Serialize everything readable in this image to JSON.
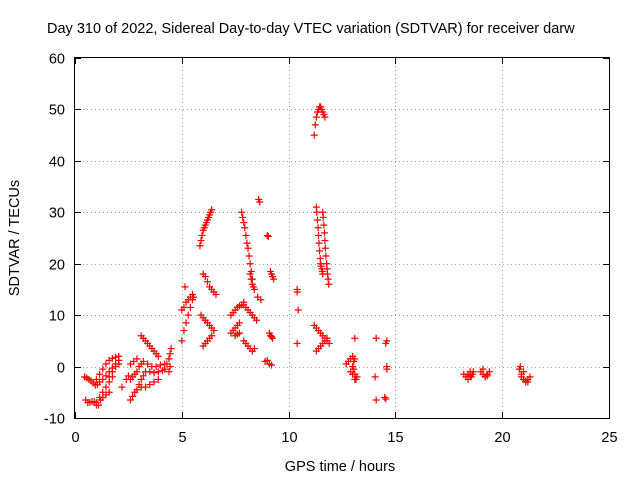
{
  "chart_data": {
    "type": "scatter",
    "title": "Day 310 of 2022, Sidereal Day-to-day VTEC variation (SDTVAR) for receiver darw",
    "xlabel": "GPS time / hours",
    "ylabel": "SDTVAR / TECUs",
    "xlim": [
      0,
      25
    ],
    "ylim": [
      -10,
      60
    ],
    "xticks": [
      0,
      5,
      10,
      15,
      20,
      25
    ],
    "yticks": [
      -10,
      0,
      10,
      20,
      30,
      40,
      50,
      60
    ],
    "grid": true,
    "marker": "+",
    "color": "#ff0000",
    "series": [
      {
        "name": "SDTVAR",
        "x": [
          0.45,
          0.55,
          0.65,
          0.75,
          0.85,
          0.95,
          1.05,
          1.15,
          1.3,
          1.45,
          1.6,
          1.75,
          1.9,
          2.05,
          1.0,
          1.15,
          1.3,
          1.45,
          1.6,
          1.75,
          1.9,
          2.05,
          1.0,
          1.15,
          1.3,
          1.45,
          1.6,
          1.75,
          0.5,
          0.6,
          0.7,
          0.8,
          0.9,
          1.0,
          1.1,
          1.2,
          1.3,
          1.45,
          1.6,
          1.6,
          1.75,
          1.9,
          2.05,
          2.2,
          2.4,
          2.5,
          2.6,
          2.7,
          2.8,
          2.9,
          3.0,
          3.1,
          3.2,
          2.6,
          2.7,
          2.8,
          2.9,
          3.0,
          3.1,
          2.6,
          2.75,
          2.9,
          3.1,
          3.2,
          3.3,
          3.4,
          3.5,
          3.6,
          3.7,
          3.8,
          3.9,
          3.1,
          3.3,
          3.5,
          3.7,
          3.9,
          3.2,
          3.4,
          3.6,
          3.8,
          4.0,
          4.2,
          3.3,
          3.5,
          3.7,
          3.9,
          4.1,
          4.2,
          4.3,
          4.4,
          4.45,
          4.5,
          4.45,
          4.4,
          5.0,
          5.1,
          5.2,
          5.3,
          5.4,
          5.5,
          5.55,
          5.0,
          5.1,
          5.2,
          5.3,
          5.4,
          5.5,
          5.15,
          5.85,
          5.9,
          5.95,
          6.0,
          6.05,
          6.1,
          6.15,
          6.2,
          6.25,
          6.3,
          6.35,
          6.4,
          6.0,
          6.1,
          6.2,
          6.3,
          6.4,
          6.5,
          6.6,
          5.9,
          6.0,
          6.1,
          6.2,
          6.3,
          6.4,
          6.5,
          6.0,
          6.1,
          6.2,
          6.3,
          6.4,
          7.3,
          7.4,
          7.5,
          7.6,
          7.7,
          7.8,
          7.9,
          7.3,
          7.4,
          7.5,
          7.6,
          7.7,
          7.5,
          7.6,
          7.7,
          7.8,
          7.85,
          7.9,
          7.95,
          8.0,
          8.05,
          8.1,
          8.15,
          8.2,
          8.25,
          8.3,
          8.2,
          8.25,
          8.3,
          8.35,
          8.4,
          7.9,
          8.0,
          8.1,
          8.2,
          8.3,
          8.4,
          8.5,
          7.9,
          8.0,
          8.1,
          8.2,
          8.3,
          8.4,
          8.6,
          8.65,
          8.55,
          8.7,
          9.0,
          9.05,
          9.15,
          9.2,
          9.25,
          9.3,
          9.1,
          9.15,
          9.2,
          9.25,
          8.9,
          9.0,
          9.1,
          9.2,
          10.4,
          10.4,
          10.45,
          10.4,
          11.2,
          11.25,
          11.3,
          11.35,
          11.4,
          11.45,
          11.5,
          11.55,
          11.6,
          11.65,
          11.7,
          11.3,
          11.32,
          11.35,
          11.38,
          11.4,
          11.42,
          11.45,
          11.48,
          11.5,
          11.52,
          11.55,
          11.58,
          11.6,
          11.6,
          11.62,
          11.65,
          11.68,
          11.7,
          11.72,
          11.75,
          11.78,
          11.8,
          11.82,
          11.85,
          11.88,
          11.2,
          11.3,
          11.4,
          11.5,
          11.6,
          11.7,
          11.8,
          11.9,
          11.3,
          11.4,
          11.5,
          11.6,
          11.7,
          11.8,
          12.7,
          12.8,
          12.9,
          13.0,
          13.05,
          13.1,
          13.15,
          13.1,
          12.9,
          13.0,
          13.05,
          13.1,
          13.2,
          13.1,
          13.0,
          14.1,
          14.05,
          14.1,
          14.6,
          14.55,
          14.6,
          14.5,
          14.6,
          14.55,
          18.2,
          18.3,
          18.4,
          18.5,
          18.55,
          18.6,
          18.65,
          18.4,
          18.5,
          19.0,
          19.1,
          19.2,
          19.3,
          19.4,
          19.1,
          19.2,
          19.3,
          20.8,
          20.9,
          21.0,
          21.1,
          21.2,
          21.3,
          20.9,
          21.0,
          21.1,
          21.2,
          20.85
        ],
        "y": [
          -2.0,
          -2.2,
          -2.5,
          -2.8,
          -3.2,
          -3.6,
          -3.5,
          -3.0,
          -2.5,
          -1.8,
          -1.0,
          -0.3,
          0.5,
          1.2,
          -2.5,
          -1.5,
          -0.5,
          0.5,
          1.2,
          1.6,
          1.8,
          2.0,
          -7.0,
          -6.0,
          -5.0,
          -4.0,
          -3.0,
          -2.0,
          -6.5,
          -7.0,
          -7.0,
          -6.8,
          -6.8,
          -7.5,
          -7.5,
          -6.5,
          -6.0,
          -5.5,
          -5.0,
          -2.0,
          -1.0,
          0.0,
          0.5,
          -4.0,
          -2.5,
          -1.8,
          -6.5,
          -5.8,
          -5.0,
          -4.5,
          -3.5,
          -2.5,
          -1.8,
          -2.5,
          -2.0,
          -1.5,
          -1.0,
          0.0,
          0.5,
          0.5,
          1.0,
          1.5,
          6.0,
          5.5,
          5.0,
          4.5,
          4.0,
          3.5,
          3.0,
          2.5,
          2.0,
          -4.0,
          -4.0,
          -3.5,
          -3.0,
          -2.5,
          1.0,
          0.5,
          0.0,
          0.0,
          0.3,
          0.5,
          -1.0,
          -1.0,
          -1.2,
          -1.0,
          -0.8,
          -0.5,
          0.5,
          1.5,
          2.5,
          3.5,
          0.0,
          -1.0,
          5.0,
          7.0,
          8.5,
          10.0,
          11.5,
          13.0,
          13.5,
          11.0,
          11.5,
          12.5,
          13.0,
          13.5,
          14.0,
          15.5,
          23.5,
          24.5,
          25.5,
          26.5,
          27.0,
          27.5,
          28.0,
          28.5,
          29.0,
          29.5,
          30.0,
          30.5,
          18.0,
          17.5,
          16.5,
          15.5,
          15.0,
          14.5,
          14.0,
          10.0,
          9.5,
          9.0,
          8.5,
          8.0,
          7.5,
          7.0,
          4.0,
          4.5,
          5.0,
          5.5,
          6.0,
          10.0,
          10.5,
          11.0,
          11.5,
          11.8,
          12.0,
          12.5,
          6.5,
          7.0,
          7.5,
          8.0,
          8.5,
          6.0,
          6.3,
          6.5,
          30.0,
          29.0,
          28.0,
          27.0,
          25.5,
          24.0,
          23.0,
          21.5,
          20.0,
          18.5,
          17.0,
          18.0,
          17.0,
          16.0,
          15.5,
          15.0,
          12.0,
          11.5,
          11.0,
          10.5,
          10.0,
          9.5,
          9.0,
          5.0,
          4.5,
          4.0,
          3.5,
          3.0,
          3.5,
          32.5,
          32.0,
          13.5,
          13.0,
          25.5,
          25.3,
          18.5,
          18.0,
          17.5,
          17.0,
          6.5,
          6.0,
          5.8,
          5.5,
          1.0,
          1.2,
          0.5,
          0.3,
          15.0,
          14.5,
          11.0,
          4.5,
          45.0,
          47.0,
          48.5,
          49.5,
          50.0,
          50.5,
          50.5,
          50.0,
          49.5,
          49.0,
          48.5,
          31.0,
          30.0,
          28.5,
          27.0,
          25.5,
          24.0,
          22.5,
          21.0,
          20.0,
          19.5,
          19.0,
          18.5,
          18.0,
          30.0,
          29.0,
          27.5,
          26.0,
          24.5,
          23.0,
          21.5,
          20.0,
          19.0,
          18.0,
          17.0,
          16.0,
          8.0,
          7.5,
          7.0,
          6.5,
          6.0,
          5.5,
          5.0,
          4.5,
          3.0,
          3.5,
          4.0,
          4.5,
          5.0,
          5.5,
          0.5,
          1.0,
          1.5,
          2.0,
          -0.5,
          -1.5,
          -2.5,
          5.5,
          -1.0,
          0.0,
          1.0,
          1.5,
          -2.0,
          -2.5,
          -1.5,
          5.5,
          -2.0,
          -6.5,
          5.0,
          4.5,
          -0.5,
          -6.0,
          0.0,
          -6.3,
          -1.5,
          -2.0,
          -1.5,
          -1.0,
          -2.0,
          -1.5,
          -1.0,
          -2.5,
          -1.8,
          -1.0,
          -1.5,
          -2.0,
          -1.5,
          -1.0,
          -0.5,
          -2.0,
          -1.8,
          -0.5,
          -1.5,
          -2.5,
          -3.0,
          -2.5,
          -2.0,
          -2.0,
          -1.0,
          -2.8,
          -3.0,
          0.0
        ]
      }
    ]
  }
}
